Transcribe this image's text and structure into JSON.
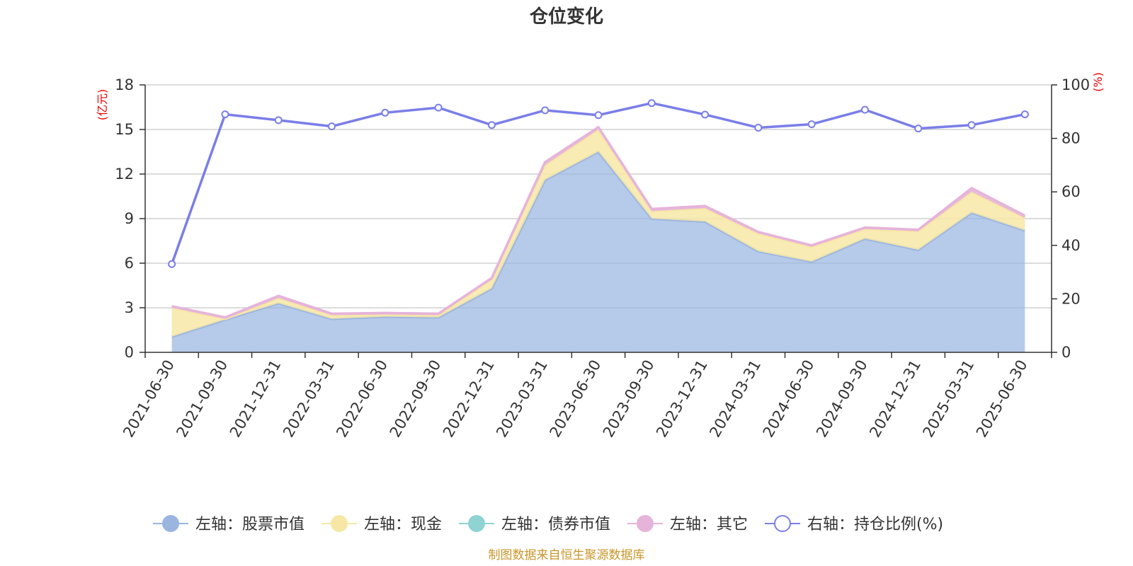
{
  "chart_data": {
    "type": "area",
    "title": "仓位变化",
    "categories": [
      "2021-06-30",
      "2021-09-30",
      "2021-12-31",
      "2022-03-31",
      "2022-06-30",
      "2022-09-30",
      "2022-12-31",
      "2023-03-31",
      "2023-06-30",
      "2023-09-30",
      "2023-12-31",
      "2024-03-31",
      "2024-06-30",
      "2024-09-30",
      "2024-12-31",
      "2025-03-31",
      "2025-06-30"
    ],
    "left_axis": {
      "unit": "(亿元)",
      "min": 0,
      "max": 18,
      "ticks": [
        0,
        3,
        6,
        9,
        12,
        15,
        18
      ]
    },
    "right_axis": {
      "unit": "(%)",
      "min": 0,
      "max": 100,
      "ticks": [
        0,
        20,
        40,
        60,
        80,
        100
      ]
    },
    "stacked": true,
    "grid": true,
    "legend_position": "bottom",
    "series": [
      {
        "name": "左轴：股票市值",
        "axis": "left",
        "color": "#9ab5e0",
        "values": [
          1.05,
          2.2,
          3.3,
          2.25,
          2.4,
          2.35,
          4.3,
          11.6,
          13.5,
          9.0,
          8.8,
          6.8,
          6.1,
          7.65,
          6.9,
          9.4,
          8.2
        ]
      },
      {
        "name": "左轴：现金",
        "axis": "left",
        "color": "#f7e7a6",
        "values": [
          1.95,
          0.05,
          0.35,
          0.25,
          0.15,
          0.15,
          0.6,
          1.0,
          1.5,
          0.5,
          0.9,
          1.2,
          1.0,
          0.65,
          1.25,
          1.4,
          0.85
        ]
      },
      {
        "name": "左轴：债券市值",
        "axis": "left",
        "color": "#8fd3d3",
        "values": [
          0,
          0,
          0,
          0,
          0,
          0,
          0,
          0,
          0,
          0,
          0,
          0,
          0,
          0,
          0,
          0,
          0
        ]
      },
      {
        "name": "左轴：其它",
        "axis": "left",
        "color": "#e6b3da",
        "values": [
          0.1,
          0.1,
          0.15,
          0.1,
          0.1,
          0.1,
          0.1,
          0.2,
          0.15,
          0.15,
          0.15,
          0.1,
          0.1,
          0.1,
          0.1,
          0.25,
          0.15
        ]
      },
      {
        "name": "右轴：持仓比例(%)",
        "axis": "right",
        "color": "#7a7ee8",
        "values": [
          33,
          89,
          86.8,
          84.5,
          89.6,
          91.5,
          85,
          90.5,
          88.7,
          93.2,
          88.9,
          84,
          85.3,
          90.7,
          83.7,
          85,
          89
        ]
      }
    ],
    "source_note": "制图数据来自恒生聚源数据库"
  }
}
